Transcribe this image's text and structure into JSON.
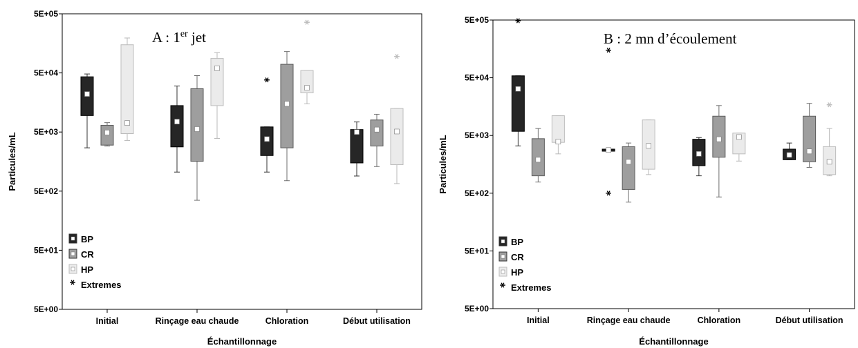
{
  "colors": {
    "BP": "#262626",
    "CR": "#9e9e9e",
    "HP": "#ebebeb",
    "extreme_BP": "#000000",
    "extreme_CR": "#555555",
    "extreme_HP": "#bdbdbd"
  },
  "chart_data": [
    {
      "type": "box",
      "title_prefix": "A : 1",
      "title_sup": "er",
      "title_suffix": " jet",
      "xlabel": "Échantillonnage",
      "ylabel": "Particules/mL",
      "yscale": "log",
      "ylim": [
        5,
        500000
      ],
      "yticks": [
        5,
        50,
        500,
        5000,
        50000,
        500000
      ],
      "ytick_labels": [
        "5E+00",
        "5E+01",
        "5E+02",
        "5E+03",
        "5E+04",
        "5E+05"
      ],
      "categories": [
        "Initial",
        "Rinçage eau chaude",
        "Chloration",
        "Début utilisation"
      ],
      "legend": {
        "placement": "bottom-left",
        "items": [
          "BP",
          "CR",
          "HP"
        ],
        "extremes_label": "Extremes"
      },
      "series": [
        {
          "name": "BP",
          "boxes": [
            {
              "whisker_low": 2700,
              "q1": 9500,
              "median": 22000,
              "q3": 43000,
              "whisker_high": 48000
            },
            {
              "whisker_low": 1050,
              "q1": 2800,
              "median": 7500,
              "q3": 14000,
              "whisker_high": 30000
            },
            {
              "whisker_low": 1050,
              "q1": 2000,
              "median": 3800,
              "q3": 6100,
              "whisker_high": 6100
            },
            {
              "whisker_low": 900,
              "q1": 1500,
              "median": 5000,
              "q3": 5500,
              "whisker_high": 7400
            }
          ],
          "extremes": [
            [],
            [],
            [
              38000
            ],
            []
          ]
        },
        {
          "name": "CR",
          "boxes": [
            {
              "whisker_low": 2900,
              "q1": 3000,
              "median": 4900,
              "q3": 6500,
              "whisker_high": 7200
            },
            {
              "whisker_low": 350,
              "q1": 1600,
              "median": 5600,
              "q3": 27000,
              "whisker_high": 45000
            },
            {
              "whisker_low": 750,
              "q1": 2700,
              "median": 15000,
              "q3": 70000,
              "whisker_high": 115000
            },
            {
              "whisker_low": 1300,
              "q1": 2900,
              "median": 5500,
              "q3": 8000,
              "whisker_high": 10000
            }
          ],
          "extremes": [
            [],
            [],
            [],
            []
          ]
        },
        {
          "name": "HP",
          "boxes": [
            {
              "whisker_low": 3600,
              "q1": 4700,
              "median": 7100,
              "q3": 150000,
              "whisker_high": 195000
            },
            {
              "whisker_low": 3900,
              "q1": 14000,
              "median": 60000,
              "q3": 88000,
              "whisker_high": 110000
            },
            {
              "whisker_low": 15000,
              "q1": 23000,
              "median": 28000,
              "q3": 55000,
              "whisker_high": 55000
            },
            {
              "whisker_low": 670,
              "q1": 1400,
              "median": 5100,
              "q3": 12500,
              "whisker_high": 12500
            }
          ],
          "extremes": [
            [],
            [],
            [
              360000
            ],
            [
              95000
            ]
          ]
        }
      ]
    },
    {
      "type": "box",
      "title_prefix": "B : 2 mn d’écoulement",
      "title_sup": "",
      "title_suffix": "",
      "xlabel": "Échantillonnage",
      "ylabel": "Particules/mL",
      "yscale": "log",
      "ylim": [
        5,
        500000
      ],
      "yticks": [
        5,
        50,
        500,
        5000,
        50000,
        500000
      ],
      "ytick_labels": [
        "5E+00",
        "5E+01",
        "5E+02",
        "5E+03",
        "5E+04",
        "5E+05"
      ],
      "categories": [
        "Initial",
        "Rinçage eau chaude",
        "Chloration",
        "Début utilisation"
      ],
      "legend": {
        "placement": "bottom-left",
        "items": [
          "BP",
          "CR",
          "HP"
        ],
        "extremes_label": "Extremes"
      },
      "series": [
        {
          "name": "BP",
          "boxes": [
            {
              "whisker_low": 3300,
              "q1": 5900,
              "median": 32000,
              "q3": 54000,
              "whisker_high": 54000
            },
            {
              "whisker_low": 2700,
              "q1": 2700,
              "median": 2800,
              "q3": 2900,
              "whisker_high": 2900
            },
            {
              "whisker_low": 1000,
              "q1": 1500,
              "median": 2400,
              "q3": 4300,
              "whisker_high": 4600
            },
            {
              "whisker_low": 1900,
              "q1": 1900,
              "median": 2300,
              "q3": 2900,
              "whisker_high": 3700
            }
          ],
          "extremes": [
            [
              500000
            ],
            [
              500,
              150000
            ],
            [],
            []
          ]
        },
        {
          "name": "CR",
          "boxes": [
            {
              "whisker_low": 780,
              "q1": 1000,
              "median": 1900,
              "q3": 4400,
              "whisker_high": 6600
            },
            {
              "whisker_low": 350,
              "q1": 580,
              "median": 1750,
              "q3": 3200,
              "whisker_high": 3700
            },
            {
              "whisker_low": 430,
              "q1": 2100,
              "median": 4300,
              "q3": 10800,
              "whisker_high": 16500
            },
            {
              "whisker_low": 1400,
              "q1": 1750,
              "median": 2650,
              "q3": 10800,
              "whisker_high": 18000
            }
          ],
          "extremes": [
            [],
            [],
            [],
            []
          ]
        },
        {
          "name": "HP",
          "boxes": [
            {
              "whisker_low": 2400,
              "q1": 3800,
              "median": 3900,
              "q3": 11000,
              "whisker_high": 11000
            },
            {
              "whisker_low": 1050,
              "q1": 1300,
              "median": 3300,
              "q3": 9300,
              "whisker_high": 9300
            },
            {
              "whisker_low": 1800,
              "q1": 2400,
              "median": 4700,
              "q3": 5500,
              "whisker_high": 5500
            },
            {
              "whisker_low": 1000,
              "q1": 1050,
              "median": 1750,
              "q3": 3200,
              "whisker_high": 6600
            }
          ],
          "extremes": [
            [],
            [],
            [],
            [
              17000
            ]
          ]
        }
      ]
    }
  ]
}
